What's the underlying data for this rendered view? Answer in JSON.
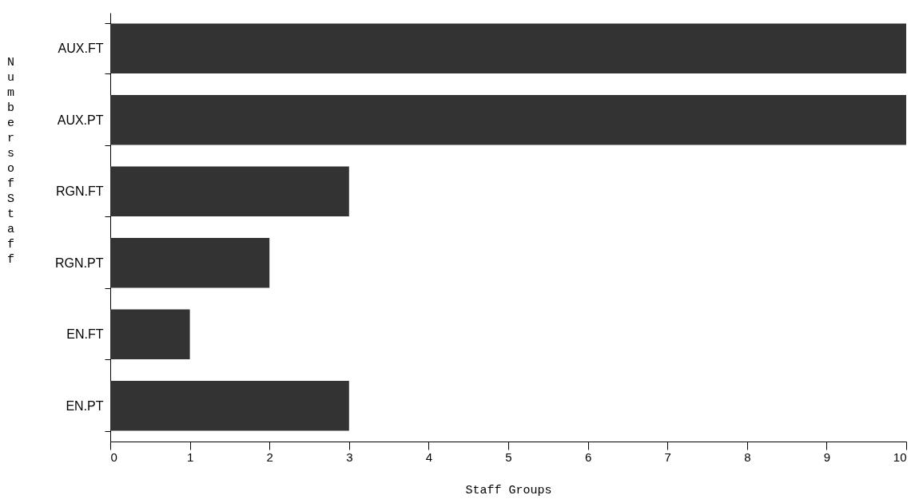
{
  "chart_data": {
    "type": "bar",
    "orientation": "horizontal",
    "xlabel": "Staff Groups",
    "ylabel": "Numbers of Staff",
    "categories": [
      "AUX.FT",
      "AUX.PT",
      "RGN.FT",
      "RGN.PT",
      "EN.FT",
      "EN.PT"
    ],
    "values": [
      10,
      10,
      3,
      2,
      1,
      3
    ],
    "color": "#333333",
    "xlim": [
      0,
      10
    ],
    "xticks": [
      0,
      1,
      2,
      3,
      4,
      5,
      6,
      7,
      8,
      9,
      10
    ],
    "grid": false
  }
}
